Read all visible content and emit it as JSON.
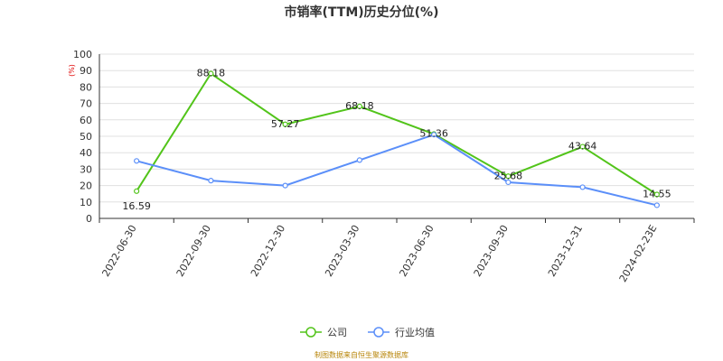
{
  "chart_data": {
    "type": "line",
    "title": "市销率(TTM)历史分位(%)",
    "y_unit": "(%)",
    "categories": [
      "2022-06-30",
      "2022-09-30",
      "2022-12-30",
      "2023-03-30",
      "2023-06-30",
      "2023-09-30",
      "2023-12-31",
      "2024-02-23E"
    ],
    "ylim": [
      0,
      100
    ],
    "yticks": [
      0,
      10,
      20,
      30,
      40,
      50,
      60,
      70,
      80,
      90,
      100
    ],
    "grid": true,
    "legend_position": "bottom-center",
    "series": [
      {
        "name": "公司",
        "color": "#52c41a",
        "values": [
          16.59,
          88.18,
          57.27,
          68.18,
          51.36,
          25.68,
          43.64,
          14.55
        ],
        "labels": [
          "16.59",
          "88.18",
          "57.27",
          "68.18",
          "51.36",
          "25.68",
          "43.64",
          "14.55"
        ]
      },
      {
        "name": "行业均值",
        "color": "#5b8ff9",
        "values": [
          35,
          23,
          20,
          35.5,
          51,
          22,
          19,
          8
        ]
      }
    ]
  },
  "source_note": "制图数据来自恒生聚源数据库"
}
